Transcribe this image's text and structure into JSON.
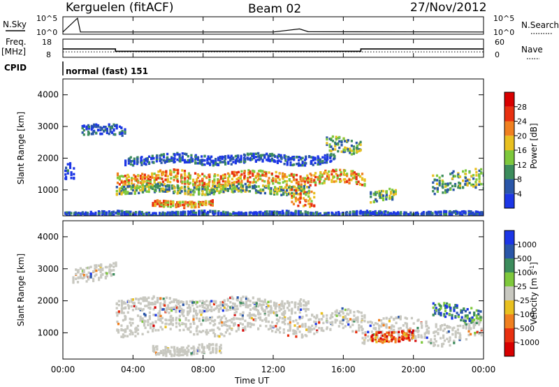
{
  "header": {
    "station": "Kerguelen (fitACF)",
    "beam": "Beam 02",
    "date": "27/Nov/2012"
  },
  "strip_panels": {
    "nsky_label": "N.Sky",
    "nsky_top_tick": "10^5",
    "nsky_bottom_tick": "10^0",
    "nsearch_label": "N.Search",
    "nsearch_top_tick": "10^5",
    "nsearch_bottom_tick": "10^0",
    "freq_label_line1": "Freq.",
    "freq_label_line2": "[MHz]",
    "freq_top_tick": "18",
    "freq_bottom_tick": "8",
    "nave_label": "Nave",
    "nave_top_tick": "60",
    "nave_bottom_tick": "0",
    "cpid_label": "CPID",
    "cpid_text": "normal (fast) 151"
  },
  "chart_data": [
    {
      "type": "line",
      "title": "N.Sky / N.Search",
      "x": [
        "00:00",
        "00:50",
        "01:00",
        "12:00",
        "13:30",
        "14:00",
        "24:00"
      ],
      "series": [
        {
          "name": "N.Sky",
          "values": [
            0.5,
            5.0,
            0.5,
            0.5,
            1.5,
            0.6,
            0.5
          ]
        },
        {
          "name": "N.Search",
          "values": [
            0.3,
            0.3,
            0.3,
            0.3,
            0.3,
            0.3,
            0.3
          ]
        }
      ],
      "ylim": [
        0,
        5
      ]
    },
    {
      "type": "line",
      "x": [
        "00:00",
        "03:00",
        "03:00",
        "17:00",
        "17:00",
        "24:00"
      ],
      "series": [
        {
          "name": "Freq.",
          "values": [
            12.5,
            12.5,
            11.0,
            11.0,
            12.5,
            12.5
          ]
        },
        {
          "name": "Nave",
          "values": [
            18,
            18,
            18,
            18,
            18,
            18
          ]
        }
      ],
      "ylim": [
        8,
        18
      ]
    },
    {
      "type": "heatmap",
      "title": "Power",
      "xlabel": "",
      "ylabel": "Slant Range [km]",
      "xlim": [
        0,
        24
      ],
      "ylim": [
        180,
        4500
      ],
      "yticks": [
        "1000",
        "2000",
        "3000",
        "4000"
      ],
      "xticks": [
        "00:00",
        "04:00",
        "08:00",
        "12:00",
        "16:00",
        "20:00",
        "00:00"
      ],
      "colorbar_label": "Power [dB]",
      "colorbar_ticks": [
        "4",
        "8",
        "12",
        "16",
        "20",
        "24",
        "28"
      ],
      "colorbar_colors": [
        "#1c36e6",
        "#2a56a8",
        "#3c8c5c",
        "#7ec83c",
        "#e8c020",
        "#f08020",
        "#e83010",
        "#d80000"
      ],
      "echo_regions": [
        {
          "t0": 3.0,
          "t1": 17.2,
          "r_center": 1400,
          "r_width": 260,
          "level": "strong"
        },
        {
          "t0": 3.0,
          "t1": 14.0,
          "r_center": 1050,
          "r_width": 160,
          "level": "medium"
        },
        {
          "t0": 5.0,
          "t1": 8.5,
          "r_center": 600,
          "r_width": 120,
          "level": "strong"
        },
        {
          "t0": 13.0,
          "t1": 14.3,
          "r_center": 700,
          "r_width": 350,
          "level": "strong"
        },
        {
          "t0": 0.0,
          "t1": 24.0,
          "r_center": 280,
          "r_width": 90,
          "level": "weak"
        },
        {
          "t0": 1.0,
          "t1": 3.5,
          "r_center": 2900,
          "r_width": 200,
          "level": "weak"
        },
        {
          "t0": 3.5,
          "t1": 15.5,
          "r_center": 2000,
          "r_width": 180,
          "level": "weak"
        },
        {
          "t0": 15.0,
          "t1": 17.0,
          "r_center": 2400,
          "r_width": 300,
          "level": "medium"
        },
        {
          "t0": 17.5,
          "t1": 19.0,
          "r_center": 850,
          "r_width": 220,
          "level": "medium"
        },
        {
          "t0": 21.0,
          "t1": 24.0,
          "r_center": 1300,
          "r_width": 380,
          "level": "medium"
        },
        {
          "t0": 0.0,
          "t1": 0.6,
          "r_center": 1700,
          "r_width": 350,
          "level": "weak"
        }
      ]
    },
    {
      "type": "heatmap",
      "title": "Velocity",
      "xlabel": "Time UT",
      "ylabel": "Slant Range [km]",
      "xlim": [
        0,
        24
      ],
      "ylim": [
        180,
        4500
      ],
      "yticks": [
        "1000",
        "2000",
        "3000",
        "4000"
      ],
      "xticks": [
        "00:00",
        "04:00",
        "08:00",
        "12:00",
        "16:00",
        "20:00",
        "00:00"
      ],
      "colorbar_label": "Velocity [m s^-1]",
      "colorbar_ticks": [
        "1000",
        "500",
        "100",
        "25",
        "-25",
        "-100",
        "-500",
        "-1000"
      ],
      "colorbar_colors": [
        "#1c36e6",
        "#2a56a8",
        "#3c8c5c",
        "#7ec83c",
        "#c8c8c0",
        "#e8c020",
        "#f08020",
        "#e83010",
        "#d80000"
      ],
      "echo_regions": [
        {
          "t0": 3.0,
          "t1": 17.2,
          "r_center": 1350,
          "r_width": 420,
          "level": "ground"
        },
        {
          "t0": 3.0,
          "t1": 14.0,
          "r_center": 1900,
          "r_width": 250,
          "level": "ground"
        },
        {
          "t0": 17.0,
          "t1": 24.0,
          "r_center": 1100,
          "r_width": 450,
          "level": "ground"
        },
        {
          "t0": 5.0,
          "t1": 9.0,
          "r_center": 500,
          "r_width": 180,
          "level": "ground"
        },
        {
          "t0": 0.5,
          "t1": 3.0,
          "r_center": 2900,
          "r_width": 300,
          "level": "ground"
        },
        {
          "t0": 21.0,
          "t1": 23.8,
          "r_center": 1650,
          "r_width": 300,
          "level": "positive"
        },
        {
          "t0": 17.5,
          "t1": 20.0,
          "r_center": 950,
          "r_width": 200,
          "level": "negative"
        }
      ]
    }
  ]
}
